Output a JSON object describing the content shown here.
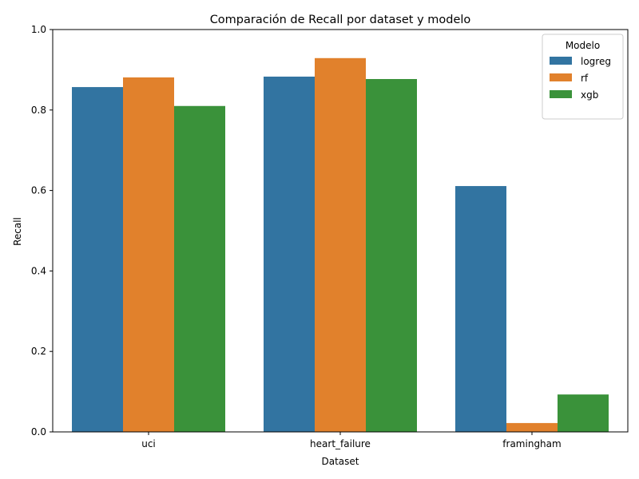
{
  "chart_data": {
    "type": "bar",
    "title": "Comparación de Recall por dataset y modelo",
    "xlabel": "Dataset",
    "ylabel": "Recall",
    "categories": [
      "uci",
      "heart_failure",
      "framingham"
    ],
    "series": [
      {
        "name": "logreg",
        "color": "#3274a1",
        "values": [
          0.857,
          0.883,
          0.611
        ]
      },
      {
        "name": "rf",
        "color": "#e1812c",
        "values": [
          0.881,
          0.929,
          0.022
        ]
      },
      {
        "name": "xgb",
        "color": "#3a923a",
        "values": [
          0.81,
          0.877,
          0.093
        ]
      }
    ],
    "ylim": [
      0,
      1.0
    ],
    "yticks": [
      "0.0",
      "0.2",
      "0.4",
      "0.6",
      "0.8",
      "1.0"
    ],
    "legend": {
      "title": "Modelo",
      "placement": "top-right"
    },
    "grid": false
  }
}
